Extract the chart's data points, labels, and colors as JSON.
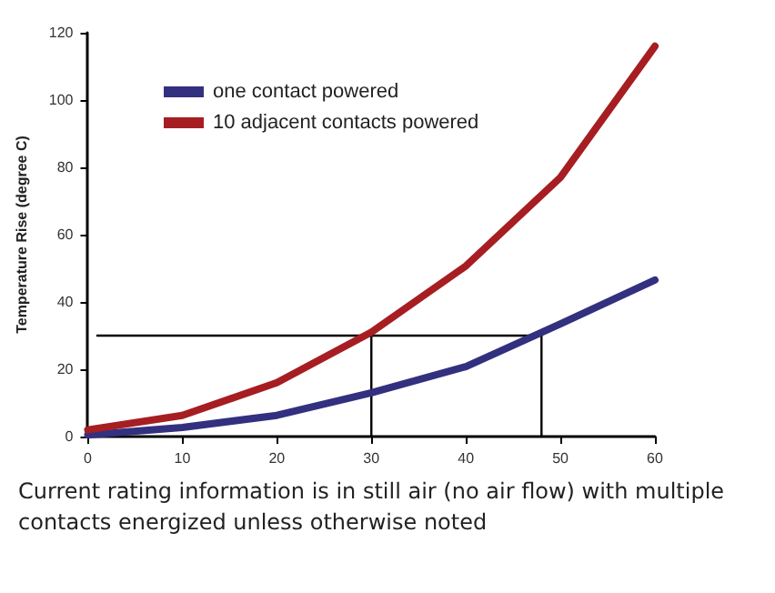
{
  "chart_data": {
    "type": "line",
    "ylabel": "Temperature Rise (degree C)",
    "annotations": [
      "Current rating information is in still air (no air flow) with multiple contacts energized unless otherwise noted"
    ],
    "x": [
      0,
      10,
      20,
      30,
      40,
      50,
      60
    ],
    "series": [
      {
        "name": "one contact powered",
        "color": "#33307f",
        "values": [
          0.5,
          2.7,
          6.3,
          13,
          20.8,
          33.5,
          46.5
        ]
      },
      {
        "name": "10 adjacent contacts powered",
        "color": "#a61e22",
        "values": [
          2,
          6.3,
          16,
          31,
          50.7,
          77,
          116
        ]
      },
      {
        "type": "line",
        "color": "#000000",
        "x": [
          1,
          48,
          48
        ],
        "values": [
          30,
          30,
          0
        ]
      },
      {
        "type": "line",
        "color": "#000000",
        "x": [
          30,
          30
        ],
        "values": [
          30,
          0
        ]
      }
    ],
    "xlim": [
      0,
      60
    ],
    "xticks": [
      0,
      10,
      20,
      30,
      40,
      50,
      60
    ],
    "ylim": [
      0,
      120
    ],
    "yticks": [
      0,
      20,
      40,
      60,
      80,
      100,
      120
    ],
    "grid": false,
    "legend": "top left",
    "marker": "none",
    "line_style": "solid"
  }
}
